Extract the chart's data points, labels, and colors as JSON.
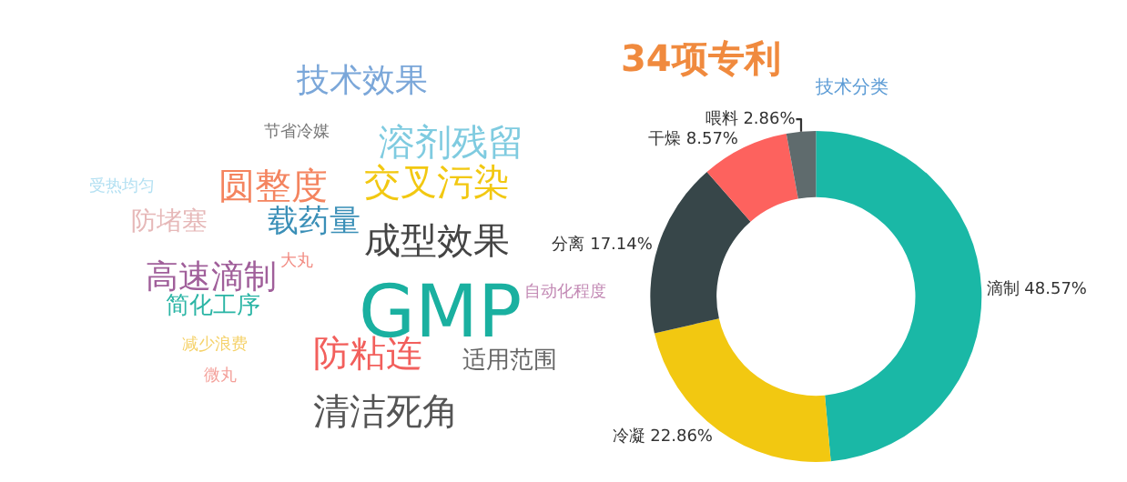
{
  "chart_data": [
    {
      "type": "other",
      "title": "技术效果",
      "annotations": [
        "节省冷媒",
        "溶剂残留",
        "圆整度",
        "交叉污染",
        "受热均匀",
        "防堵塞",
        "载药量",
        "成型效果",
        "高速滴制",
        "大丸",
        "GMP",
        "自动化程度",
        "简化工序",
        "减少浪费",
        "防粘连",
        "适用范围",
        "微丸",
        "清洁死角"
      ]
    },
    {
      "type": "donut",
      "title": "34项专利",
      "subtitle": "技术分类",
      "categories": [
        "滴制",
        "冷凝",
        "分离",
        "干燥",
        "喂料"
      ],
      "values": [
        48.57,
        22.86,
        17.14,
        8.57,
        2.86
      ],
      "colors": [
        "#1ab8a6",
        "#f2c811",
        "#374649",
        "#fd625e",
        "#5f6b6d"
      ],
      "value_labels": [
        "48.57%",
        "22.86%",
        "17.14%",
        "8.57%",
        "2.86%"
      ]
    }
  ]
}
